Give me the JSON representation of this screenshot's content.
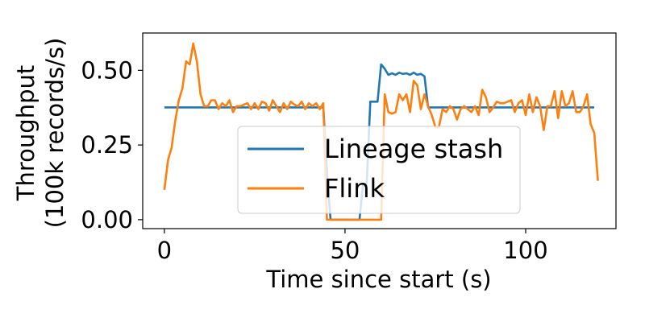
{
  "chart_data": {
    "type": "line",
    "title": "",
    "xlabel": "Time since start (s)",
    "ylabel_lines": [
      "Throughput",
      "(100k records/s)"
    ],
    "xlim": [
      -6,
      125
    ],
    "ylim": [
      -0.03,
      0.625
    ],
    "x_ticks": [
      0,
      50,
      100
    ],
    "x_tick_labels": [
      "0",
      "50",
      "100"
    ],
    "y_ticks": [
      0.0,
      0.25,
      0.5
    ],
    "y_tick_labels": [
      "0.00",
      "0.25",
      "0.50"
    ],
    "grid": false,
    "legend_position": "center-bottom",
    "series": [
      {
        "name": "Lineage stash",
        "color": "#1f77b4",
        "points": [
          [
            0,
            0.376
          ],
          [
            5,
            0.376
          ],
          [
            10,
            0.376
          ],
          [
            20,
            0.376
          ],
          [
            30,
            0.376
          ],
          [
            40,
            0.376
          ],
          [
            44,
            0.376
          ],
          [
            45,
            0.16
          ],
          [
            46,
            0.0
          ],
          [
            54,
            0.0
          ],
          [
            55,
            0.12
          ],
          [
            56,
            0.12
          ],
          [
            57,
            0.395
          ],
          [
            59,
            0.395
          ],
          [
            60,
            0.52
          ],
          [
            61,
            0.505
          ],
          [
            62,
            0.485
          ],
          [
            63,
            0.49
          ],
          [
            64,
            0.485
          ],
          [
            65,
            0.492
          ],
          [
            66,
            0.488
          ],
          [
            67,
            0.49
          ],
          [
            68,
            0.485
          ],
          [
            69,
            0.492
          ],
          [
            70,
            0.485
          ],
          [
            71,
            0.488
          ],
          [
            72,
            0.48
          ],
          [
            73,
            0.376
          ],
          [
            80,
            0.376
          ],
          [
            90,
            0.376
          ],
          [
            100,
            0.376
          ],
          [
            110,
            0.376
          ],
          [
            119,
            0.376
          ]
        ]
      },
      {
        "name": "Flink",
        "color": "#ff7f0e",
        "points": [
          [
            0,
            0.1
          ],
          [
            1,
            0.2
          ],
          [
            2,
            0.24
          ],
          [
            3,
            0.33
          ],
          [
            4,
            0.4
          ],
          [
            5,
            0.44
          ],
          [
            6,
            0.53
          ],
          [
            7,
            0.52
          ],
          [
            8,
            0.59
          ],
          [
            9,
            0.53
          ],
          [
            10,
            0.42
          ],
          [
            11,
            0.38
          ],
          [
            12,
            0.38
          ],
          [
            13,
            0.4
          ],
          [
            14,
            0.4
          ],
          [
            15,
            0.37
          ],
          [
            16,
            0.39
          ],
          [
            17,
            0.38
          ],
          [
            18,
            0.4
          ],
          [
            19,
            0.36
          ],
          [
            20,
            0.38
          ],
          [
            21,
            0.38
          ],
          [
            22,
            0.385
          ],
          [
            23,
            0.39
          ],
          [
            24,
            0.37
          ],
          [
            25,
            0.39
          ],
          [
            26,
            0.37
          ],
          [
            27,
            0.395
          ],
          [
            28,
            0.39
          ],
          [
            29,
            0.365
          ],
          [
            30,
            0.4
          ],
          [
            31,
            0.38
          ],
          [
            32,
            0.36
          ],
          [
            33,
            0.39
          ],
          [
            34,
            0.37
          ],
          [
            35,
            0.395
          ],
          [
            36,
            0.385
          ],
          [
            37,
            0.38
          ],
          [
            38,
            0.395
          ],
          [
            39,
            0.37
          ],
          [
            40,
            0.39
          ],
          [
            41,
            0.38
          ],
          [
            42,
            0.39
          ],
          [
            43,
            0.37
          ],
          [
            44,
            0.39
          ],
          [
            45,
            0.0
          ],
          [
            60,
            0.0
          ],
          [
            61,
            0.42
          ],
          [
            62,
            0.36
          ],
          [
            63,
            0.355
          ],
          [
            64,
            0.36
          ],
          [
            65,
            0.42
          ],
          [
            66,
            0.4
          ],
          [
            67,
            0.42
          ],
          [
            68,
            0.36
          ],
          [
            69,
            0.465
          ],
          [
            70,
            0.45
          ],
          [
            71,
            0.37
          ],
          [
            72,
            0.42
          ],
          [
            73,
            0.38
          ],
          [
            74,
            0.35
          ],
          [
            75,
            0.31
          ],
          [
            76,
            0.31
          ],
          [
            77,
            0.37
          ],
          [
            78,
            0.36
          ],
          [
            79,
            0.38
          ],
          [
            80,
            0.37
          ],
          [
            81,
            0.335
          ],
          [
            82,
            0.37
          ],
          [
            83,
            0.38
          ],
          [
            84,
            0.37
          ],
          [
            85,
            0.36
          ],
          [
            86,
            0.38
          ],
          [
            87,
            0.35
          ],
          [
            88,
            0.435
          ],
          [
            89,
            0.41
          ],
          [
            90,
            0.36
          ],
          [
            91,
            0.375
          ],
          [
            92,
            0.395
          ],
          [
            93,
            0.39
          ],
          [
            94,
            0.39
          ],
          [
            95,
            0.395
          ],
          [
            96,
            0.4
          ],
          [
            97,
            0.36
          ],
          [
            98,
            0.39
          ],
          [
            99,
            0.4
          ],
          [
            100,
            0.35
          ],
          [
            101,
            0.42
          ],
          [
            102,
            0.36
          ],
          [
            103,
            0.41
          ],
          [
            104,
            0.38
          ],
          [
            105,
            0.3
          ],
          [
            106,
            0.38
          ],
          [
            107,
            0.38
          ],
          [
            108,
            0.43
          ],
          [
            109,
            0.34
          ],
          [
            110,
            0.43
          ],
          [
            111,
            0.38
          ],
          [
            112,
            0.39
          ],
          [
            113,
            0.43
          ],
          [
            114,
            0.36
          ],
          [
            115,
            0.36
          ],
          [
            116,
            0.38
          ],
          [
            117,
            0.42
          ],
          [
            118,
            0.32
          ],
          [
            119,
            0.29
          ],
          [
            120,
            0.13
          ]
        ]
      }
    ]
  }
}
